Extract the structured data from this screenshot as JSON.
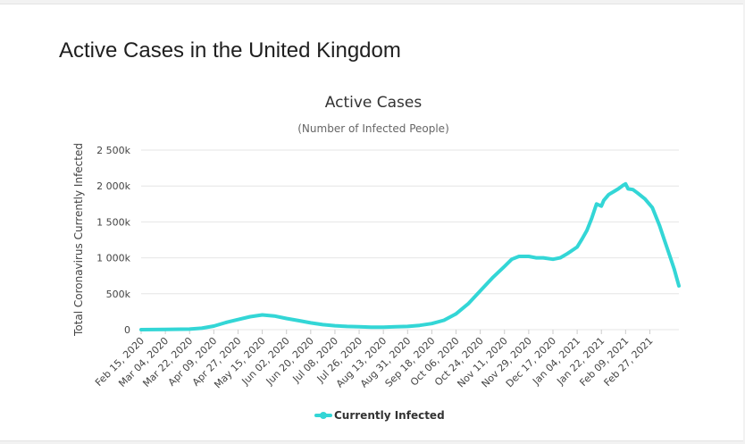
{
  "page": {
    "title": "Active Cases in the United Kingdom"
  },
  "colors": {
    "series": "#33d6d6",
    "grid": "#e6e6e6"
  },
  "chart_data": {
    "type": "line",
    "title": "Active Cases",
    "subtitle": "(Number of Infected People)",
    "xlabel": "",
    "ylabel": "Total Coronavirus Currently Infected",
    "ylim": [
      0,
      2500000
    ],
    "yticks": [
      0,
      500000,
      1000000,
      1500000,
      2000000,
      2500000
    ],
    "ytick_labels": [
      "0",
      "500k",
      "1 000k",
      "1 500k",
      "2 000k",
      "2 500k"
    ],
    "categories": [
      "Feb 15, 2020",
      "Mar 04, 2020",
      "Mar 22, 2020",
      "Apr 09, 2020",
      "Apr 27, 2020",
      "May 15, 2020",
      "Jun 02, 2020",
      "Jun 20, 2020",
      "Jul 08, 2020",
      "Jul 26, 2020",
      "Aug 13, 2020",
      "Aug 31, 2020",
      "Sep 18, 2020",
      "Oct 06, 2020",
      "Oct 24, 2020",
      "Nov 11, 2020",
      "Nov 29, 2020",
      "Dec 17, 2020",
      "Jan 04, 2021",
      "Jan 22, 2021",
      "Feb 09, 2021",
      "Feb 27, 2021"
    ],
    "x_index_range": [
      0,
      22.2
    ],
    "legend": {
      "position": "bottom-center",
      "entries": [
        "Currently Infected"
      ]
    },
    "series": [
      {
        "name": "Currently Infected",
        "x": [
          0,
          1,
          2,
          2.5,
          3,
          3.5,
          4,
          4.5,
          5,
          5.5,
          6,
          6.5,
          7,
          7.5,
          8,
          8.5,
          9,
          9.5,
          10,
          10.5,
          11,
          11.5,
          12,
          12.5,
          13,
          13.5,
          14,
          14.5,
          15,
          15.3,
          15.6,
          16,
          16.3,
          16.6,
          17,
          17.3,
          17.6,
          18,
          18.2,
          18.4,
          18.6,
          18.8,
          19,
          19.1,
          19.3,
          19.5,
          19.7,
          19.9,
          20.0,
          20.1,
          20.3,
          20.5,
          20.8,
          21.1,
          21.4,
          21.6,
          21.8,
          22.0,
          22.2
        ],
        "values": [
          0,
          2000,
          8000,
          20000,
          50000,
          100000,
          140000,
          180000,
          205000,
          190000,
          155000,
          125000,
          95000,
          70000,
          55000,
          45000,
          40000,
          35000,
          35000,
          40000,
          45000,
          60000,
          85000,
          130000,
          220000,
          360000,
          540000,
          720000,
          880000,
          980000,
          1020000,
          1020000,
          1000000,
          1000000,
          980000,
          1000000,
          1060000,
          1150000,
          1260000,
          1380000,
          1550000,
          1750000,
          1720000,
          1800000,
          1880000,
          1920000,
          1960000,
          2010000,
          2030000,
          1960000,
          1950000,
          1900000,
          1820000,
          1700000,
          1450000,
          1250000,
          1050000,
          850000,
          610000
        ]
      }
    ]
  }
}
